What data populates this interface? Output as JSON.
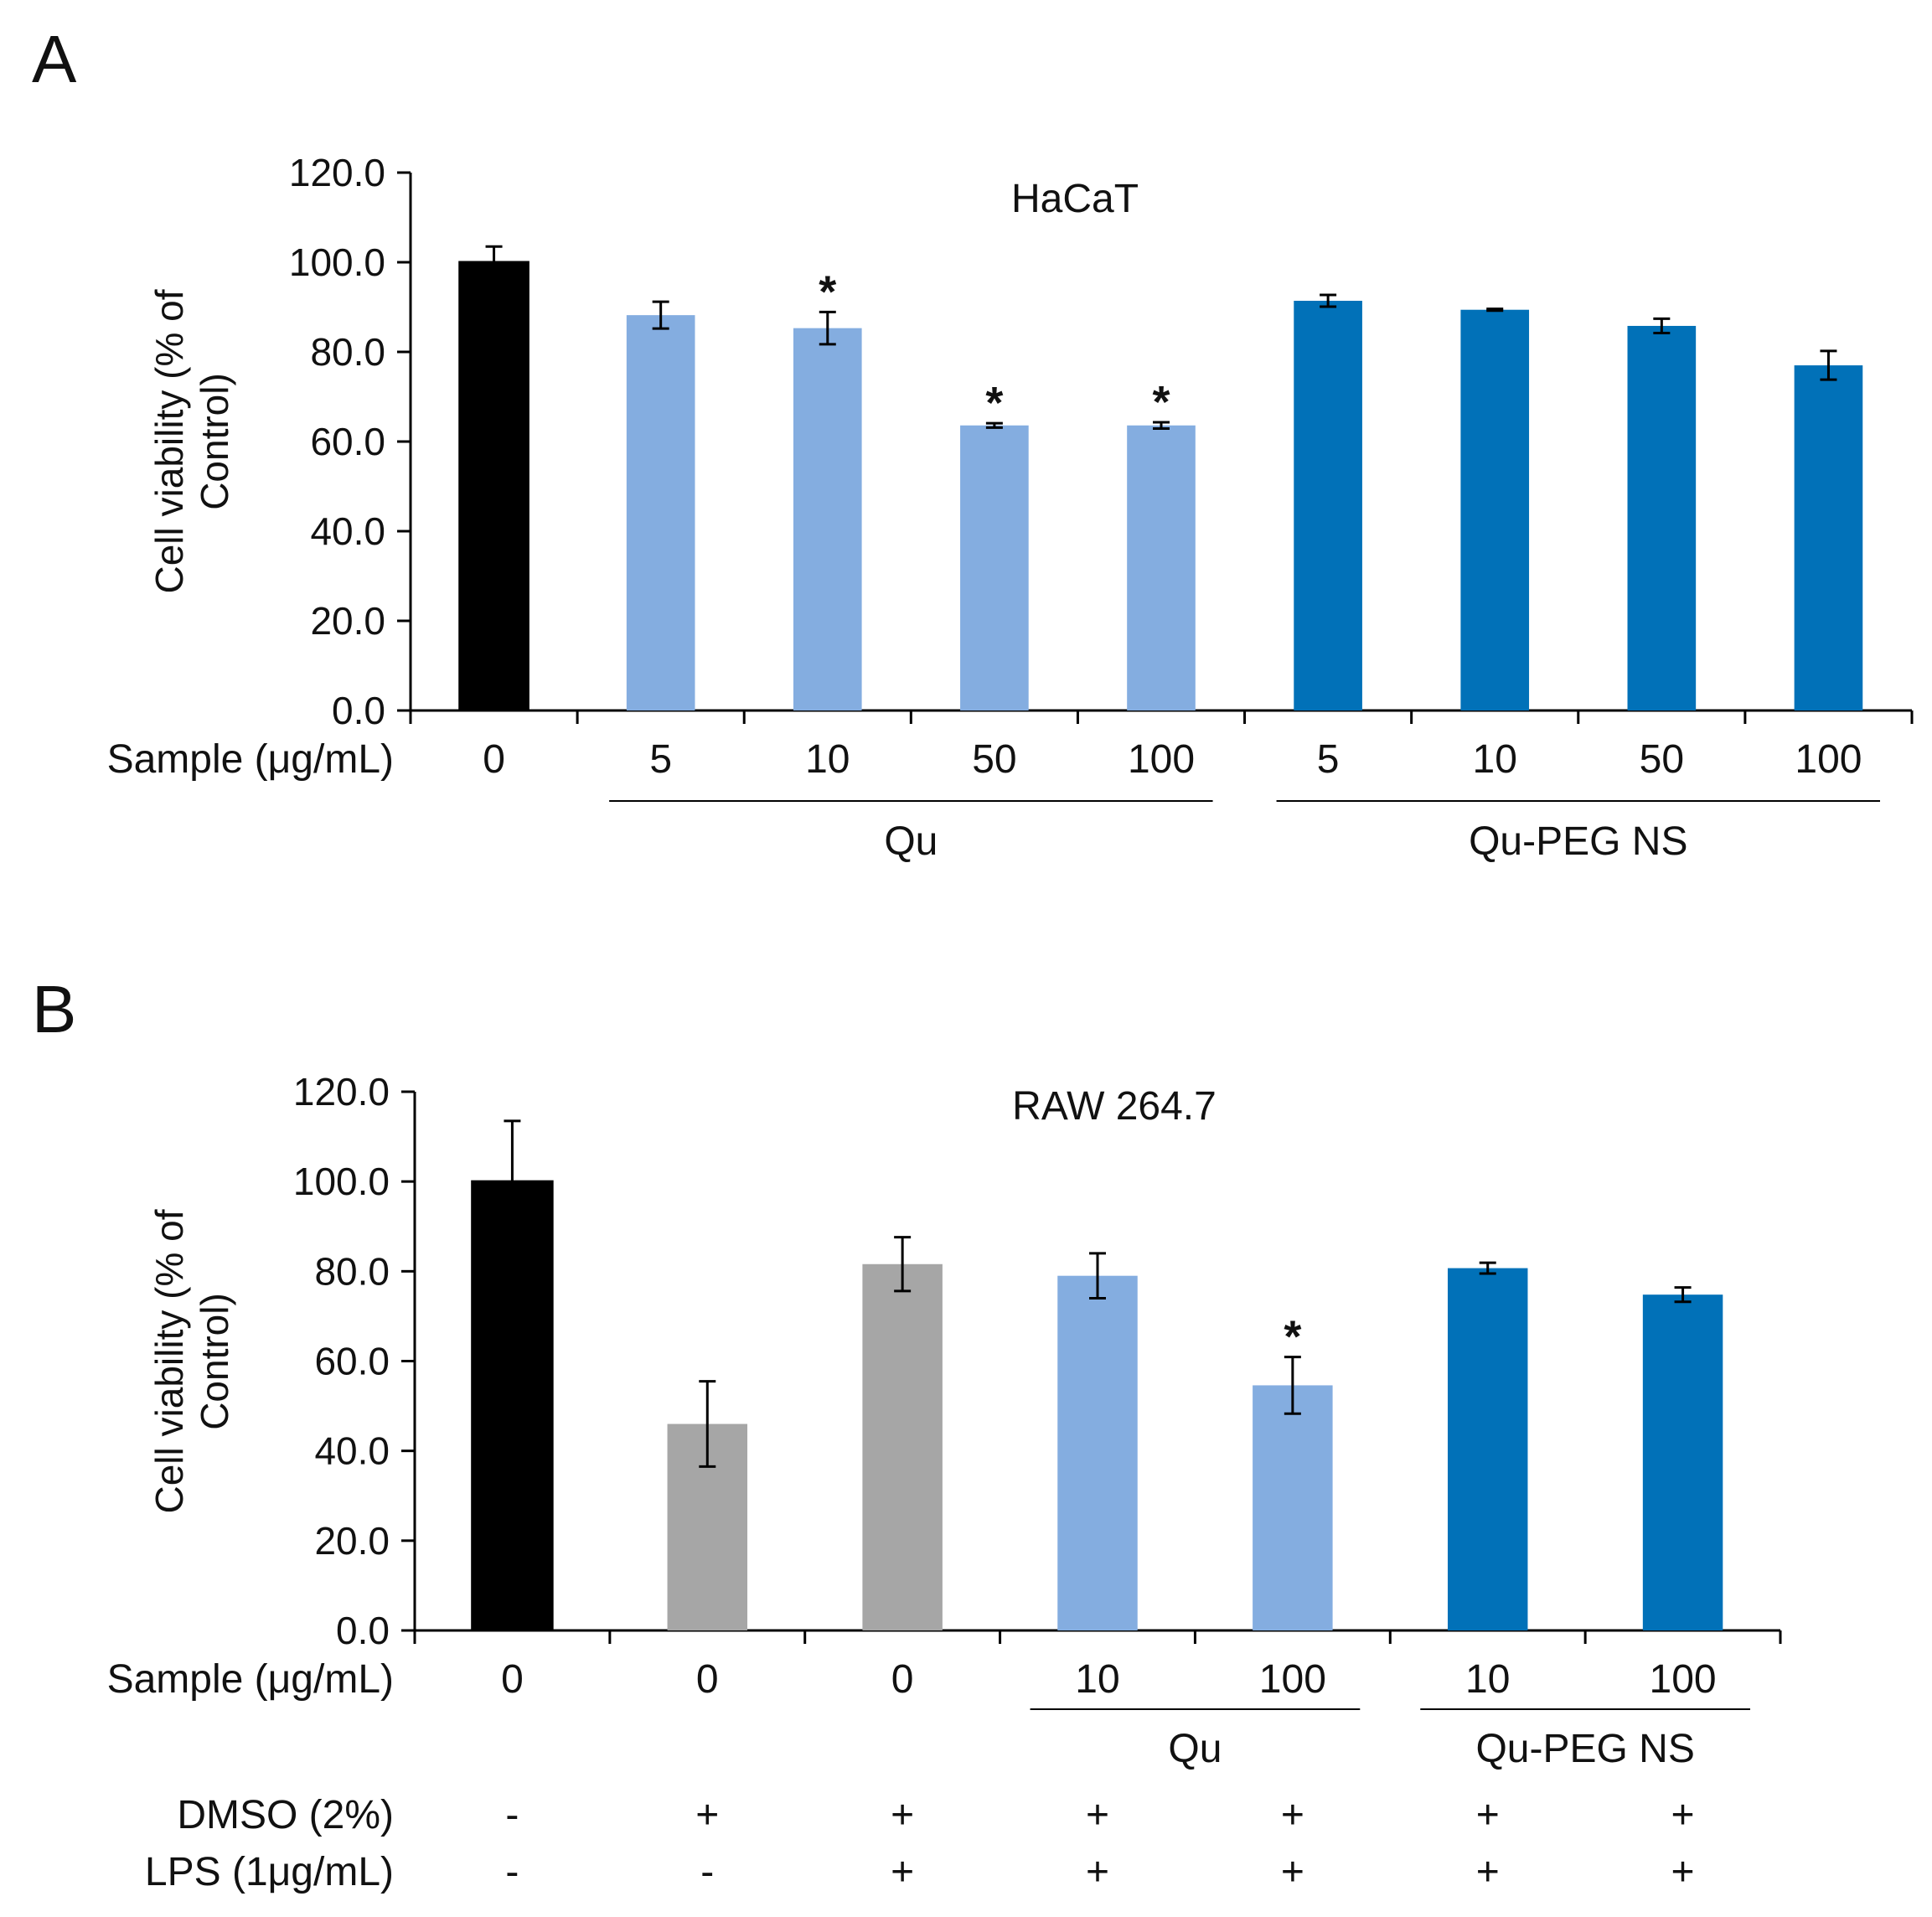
{
  "colors": {
    "control_fill": "#ffffff",
    "qu": "#84ade0",
    "qu_peg_ns": "#0171b8",
    "dmso_lps": "#a6a6a6",
    "axis": "#000000"
  },
  "chart_data": [
    {
      "panel": "A",
      "type": "bar",
      "title": "HaCaT",
      "ylabel": "Cell viability (% of Control)",
      "ylim": [
        0,
        120
      ],
      "yticks": [
        "0.0",
        "20.0",
        "40.0",
        "60.0",
        "80.0",
        "100.0",
        "120.0"
      ],
      "row_label": "Sample (μg/mL)",
      "categories": [
        "0",
        "5",
        "10",
        "50",
        "100",
        "5",
        "10",
        "50",
        "100"
      ],
      "groups": [
        "control",
        "qu",
        "qu",
        "qu",
        "qu",
        "qu_peg_ns",
        "qu_peg_ns",
        "qu_peg_ns",
        "qu_peg_ns"
      ],
      "values": [
        100.0,
        88.2,
        85.3,
        63.6,
        63.6,
        91.4,
        89.4,
        85.8,
        77.0
      ],
      "errors": [
        3.5,
        3.0,
        3.6,
        0.5,
        0.7,
        1.3,
        0.2,
        1.6,
        3.2
      ],
      "significant": [
        false,
        false,
        true,
        true,
        true,
        false,
        false,
        false,
        false
      ],
      "star_label": "*",
      "group_labels": [
        {
          "label": "Qu",
          "from": 1,
          "to": 4
        },
        {
          "label": "Qu-PEG NS",
          "from": 5,
          "to": 8
        }
      ],
      "grid": false,
      "legend": "none"
    },
    {
      "panel": "B",
      "type": "bar",
      "title": "RAW 264.7",
      "ylabel": "Cell viability (% of Control)",
      "ylim": [
        0,
        120
      ],
      "yticks": [
        "0.0",
        "20.0",
        "40.0",
        "60.0",
        "80.0",
        "100.0",
        "120.0"
      ],
      "row_label": "Sample (μg/mL)",
      "categories": [
        "0",
        "0",
        "0",
        "10",
        "100",
        "10",
        "100"
      ],
      "groups": [
        "control",
        "dmso_lps",
        "dmso_lps",
        "qu",
        "qu",
        "qu_peg_ns",
        "qu_peg_ns"
      ],
      "values": [
        100.0,
        46.0,
        81.6,
        79.0,
        54.6,
        80.7,
        74.8
      ],
      "errors": [
        13.5,
        9.5,
        6.0,
        5.0,
        6.3,
        1.2,
        1.6
      ],
      "significant": [
        false,
        false,
        false,
        false,
        true,
        false,
        false
      ],
      "star_label": "*",
      "group_labels": [
        {
          "label": "Qu",
          "from": 3,
          "to": 4
        },
        {
          "label": "Qu-PEG NS",
          "from": 5,
          "to": 6
        }
      ],
      "extra_rows": [
        {
          "label": "DMSO (2%)",
          "values": [
            "-",
            "+",
            "+",
            "+",
            "+",
            "+",
            "+"
          ]
        },
        {
          "label": "LPS (1μg/mL)",
          "values": [
            "-",
            "-",
            "+",
            "+",
            "+",
            "+",
            "+"
          ]
        }
      ],
      "grid": false,
      "legend": "none"
    }
  ],
  "panel_labels": [
    "A",
    "B"
  ]
}
